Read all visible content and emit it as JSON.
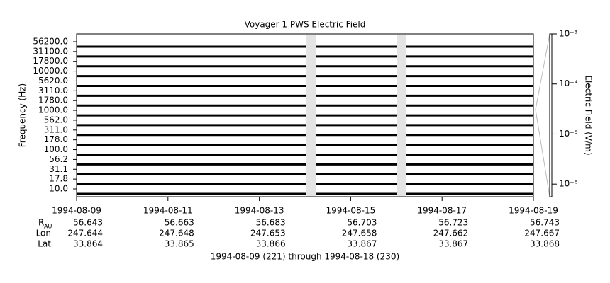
{
  "chart_data": {
    "type": "spectrogram",
    "title": "Voyager 1 PWS Electric Field",
    "ylabel": "Frequency (Hz)",
    "categories": [
      "10.0",
      "17.8",
      "31.1",
      "56.2",
      "100.0",
      "178.0",
      "311.0",
      "562.0",
      "1000.0",
      "1780.0",
      "3110.0",
      "5620.0",
      "10000.0",
      "17800.0",
      "31100.0",
      "56200.0"
    ],
    "xlim": [
      "1994-08-09",
      "1994-08-19"
    ],
    "xticks": [
      "1994-08-09",
      "1994-08-11",
      "1994-08-13",
      "1994-08-15",
      "1994-08-17",
      "1994-08-19"
    ],
    "y2label": "Electric Field (V/m)",
    "y2lim": [
      5.6e-07,
      0.001
    ],
    "y2scale": "log",
    "y2ticks": [
      {
        "value": 1e-06,
        "label": "10⁻⁶"
      },
      {
        "value": 1e-05,
        "label": "10⁻⁵"
      },
      {
        "value": 0.0001,
        "label": "10⁻⁴"
      },
      {
        "value": 0.001,
        "label": "10⁻³"
      }
    ],
    "trace_color": "#000000",
    "ephemeris": [
      {
        "label": "R",
        "sub": "AU",
        "values": [
          56.643,
          56.663,
          56.683,
          56.703,
          56.723,
          56.743
        ]
      },
      {
        "label": "Lon",
        "values": [
          247.644,
          247.648,
          247.653,
          247.658,
          247.662,
          247.667
        ]
      },
      {
        "label": "Lat",
        "values": [
          33.864,
          33.865,
          33.866,
          33.867,
          33.867,
          33.868
        ]
      }
    ],
    "footer": "1994-08-09 (221) through 1994-08-18 (230)"
  }
}
